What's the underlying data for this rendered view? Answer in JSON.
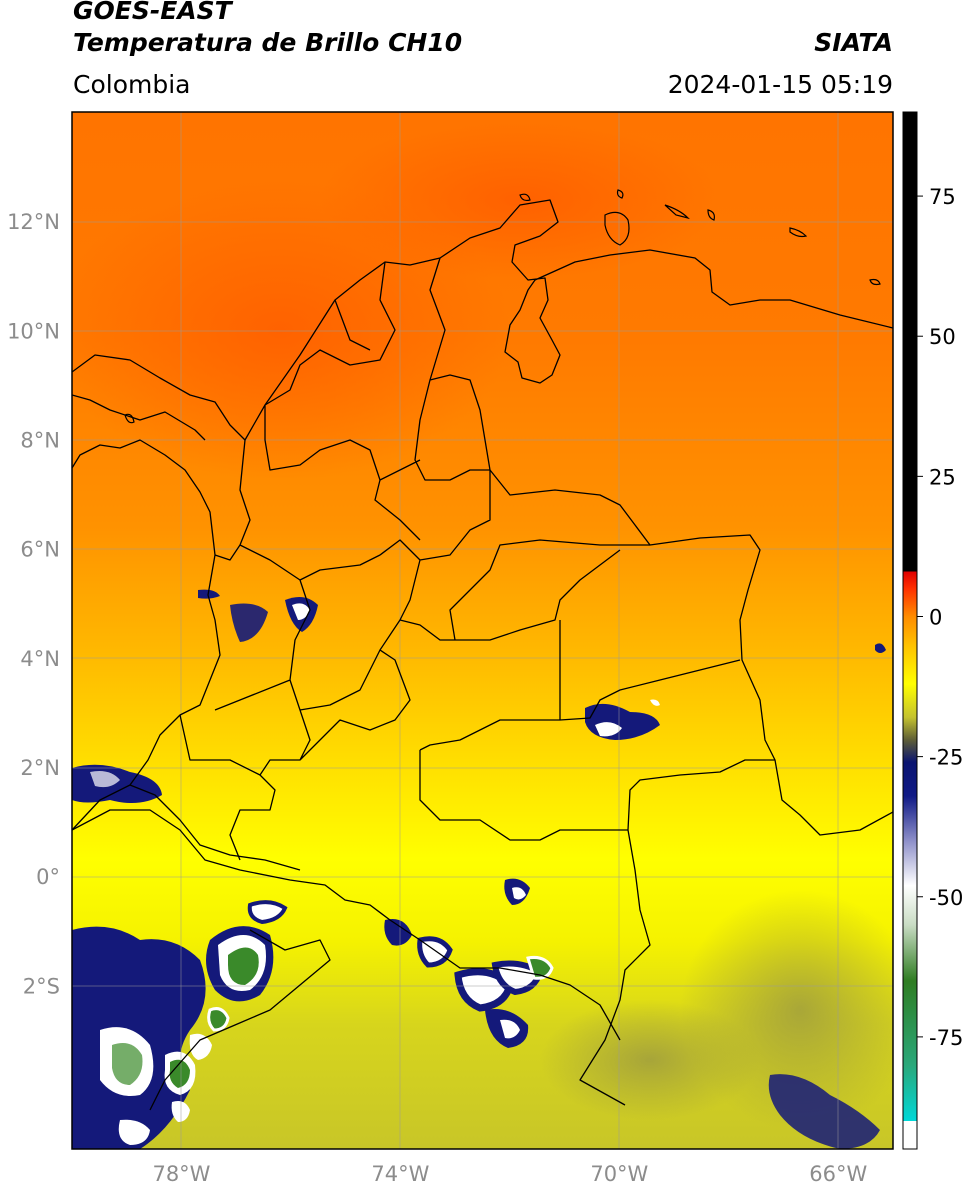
{
  "header": {
    "satellite": "GOES-EAST",
    "product": "Temperatura de Brillo CH10",
    "source": "SIATA",
    "region": "Colombia",
    "timestamp": "2024-01-15 05:19"
  },
  "map": {
    "lon_range": [
      -80,
      -65
    ],
    "lat_range": [
      -5,
      14
    ],
    "lat_labels": [
      {
        "lat": 12,
        "text": "12°N"
      },
      {
        "lat": 10,
        "text": "10°N"
      },
      {
        "lat": 8,
        "text": "8°N"
      },
      {
        "lat": 6,
        "text": "6°N"
      },
      {
        "lat": 4,
        "text": "4°N"
      },
      {
        "lat": 2,
        "text": "2°N"
      },
      {
        "lat": 0,
        "text": "0°"
      },
      {
        "lat": -2,
        "text": "2°S"
      }
    ],
    "lon_labels": [
      {
        "lon": -78,
        "text": "78°W"
      },
      {
        "lon": -74,
        "text": "74°W"
      },
      {
        "lon": -70,
        "text": "70°W"
      },
      {
        "lon": -66,
        "text": "66°W"
      }
    ],
    "grid": true
  },
  "colorbar": {
    "range": [
      -95,
      90
    ],
    "ticks": [
      {
        "value": 75,
        "text": "75"
      },
      {
        "value": 50,
        "text": "50"
      },
      {
        "value": 25,
        "text": "25"
      },
      {
        "value": 0,
        "text": "0"
      },
      {
        "value": -25,
        "text": "-25"
      },
      {
        "value": -50,
        "text": "-50"
      },
      {
        "value": -75,
        "text": "-75"
      }
    ],
    "stops": [
      {
        "value": -95,
        "color": "#ffffff"
      },
      {
        "value": -90,
        "color": "#ffffff"
      },
      {
        "value": -90,
        "color": "#00d8d8"
      },
      {
        "value": -80,
        "color": "#2aa87a"
      },
      {
        "value": -65,
        "color": "#2f7d22"
      },
      {
        "value": -55,
        "color": "#c9dcc4"
      },
      {
        "value": -48,
        "color": "#ffffff"
      },
      {
        "value": -40,
        "color": "#8d8fc9"
      },
      {
        "value": -32,
        "color": "#101a86"
      },
      {
        "value": -26,
        "color": "#0a1470"
      },
      {
        "value": -22,
        "color": "#5e5e36"
      },
      {
        "value": -18,
        "color": "#c4c22e"
      },
      {
        "value": -12,
        "color": "#ffff00"
      },
      {
        "value": -5,
        "color": "#ffc000"
      },
      {
        "value": 0,
        "color": "#ff8c00"
      },
      {
        "value": 5,
        "color": "#ff3000"
      },
      {
        "value": 8,
        "color": "#e00000"
      },
      {
        "value": 8,
        "color": "#000000"
      },
      {
        "value": 90,
        "color": "#000000"
      }
    ]
  },
  "colors": {
    "cold_field": "#a8a83a",
    "yellow_field": "#ffff00",
    "warm_field": "#ff8c00",
    "hot_field": "#ff6a00",
    "cloud_navy": "#14197a",
    "cloud_white": "#ffffff",
    "cloud_green": "#3a8a2a"
  }
}
